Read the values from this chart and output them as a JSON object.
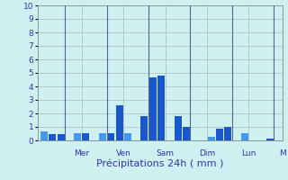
{
  "xlabel": "Précipitations 24h ( mm )",
  "ylim": [
    0,
    10
  ],
  "yticks": [
    0,
    1,
    2,
    3,
    4,
    5,
    6,
    7,
    8,
    9,
    10
  ],
  "background_color": "#cff0f0",
  "grid_color": "#aabbbb",
  "sep_color": "#556688",
  "day_labels": [
    "Mer",
    "Ven",
    "Sam",
    "Dim",
    "Lun",
    "M"
  ],
  "day_positions": [
    4.5,
    9.5,
    14.5,
    19.5,
    24.5,
    28.5
  ],
  "sep_positions": [
    2.5,
    7.5,
    12.5,
    17.5,
    22.5,
    27.5
  ],
  "values": [
    0.7,
    0.5,
    0.45,
    0.0,
    0.55,
    0.55,
    0.0,
    0.55,
    0.55,
    2.6,
    0.55,
    0.0,
    1.8,
    4.7,
    4.8,
    0.0,
    1.8,
    1.0,
    0.0,
    0.0,
    0.3,
    0.9,
    1.0,
    0.0,
    0.55,
    0.0,
    0.0,
    0.15
  ],
  "bar_colors": [
    "#4499ee",
    "#1a56cc",
    "#1a56cc",
    "#1a56cc",
    "#4499ee",
    "#1a56cc",
    "#1a56cc",
    "#4499ee",
    "#1a56cc",
    "#1a56cc",
    "#4499ee",
    "#1a56cc",
    "#1a56cc",
    "#1a56cc",
    "#1a56cc",
    "#1a56cc",
    "#1a56cc",
    "#1a56cc",
    "#1a56cc",
    "#1a56cc",
    "#4499ee",
    "#1a56cc",
    "#1a56cc",
    "#1a56cc",
    "#4499ee",
    "#1a56cc",
    "#1a56cc",
    "#1a56cc"
  ],
  "xlabel_fontsize": 8,
  "tick_fontsize": 6.5,
  "label_color": "#3333aa"
}
